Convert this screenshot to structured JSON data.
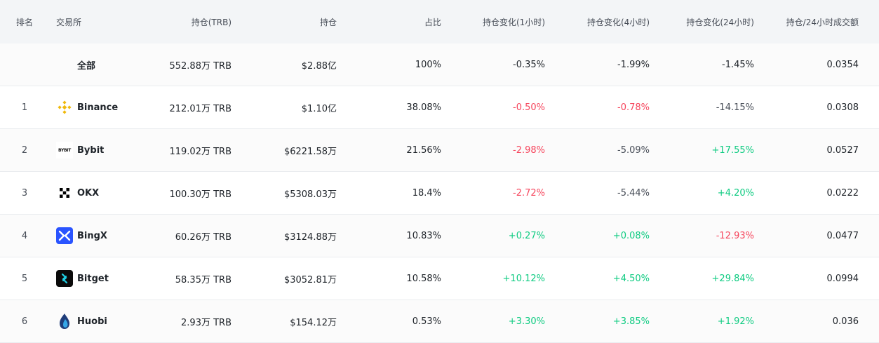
{
  "header": {
    "rank": "排名",
    "exchange": "交易所",
    "open_interest_trb": "持仓(TRB)",
    "open_interest": "持仓",
    "share": "占比",
    "change_1h": "持仓变化(1小时)",
    "change_4h": "持仓变化(4小时)",
    "change_24h": "持仓变化(24小时)",
    "oi_to_24h_volume": "持仓/24小时成交额"
  },
  "total": {
    "label": "全部",
    "oi_trb": "552.88万 TRB",
    "oi": "$2.88亿",
    "share": "100%",
    "h1": "-0.35%",
    "h4": "-1.99%",
    "h24": "-1.45%",
    "ratio": "0.0354"
  },
  "rows": [
    {
      "rank": "1",
      "name": "Binance",
      "icon": "binance-icon",
      "oi_trb": "212.01万 TRB",
      "oi": "$1.10亿",
      "share": "38.08%",
      "h1": "-0.50%",
      "h4": "-0.78%",
      "h24": "-14.15%",
      "ratio": "0.0308"
    },
    {
      "rank": "2",
      "name": "Bybit",
      "icon": "bybit-icon",
      "oi_trb": "119.02万 TRB",
      "oi": "$6221.58万",
      "share": "21.56%",
      "h1": "-2.98%",
      "h4": "-5.09%",
      "h24": "+17.55%",
      "ratio": "0.0527"
    },
    {
      "rank": "3",
      "name": "OKX",
      "icon": "okx-icon",
      "oi_trb": "100.30万 TRB",
      "oi": "$5308.03万",
      "share": "18.4%",
      "h1": "-2.72%",
      "h4": "-5.44%",
      "h24": "+4.20%",
      "ratio": "0.0222"
    },
    {
      "rank": "4",
      "name": "BingX",
      "icon": "bingx-icon",
      "oi_trb": "60.26万 TRB",
      "oi": "$3124.88万",
      "share": "10.83%",
      "h1": "+0.27%",
      "h4": "+0.08%",
      "h24": "-12.93%",
      "ratio": "0.0477"
    },
    {
      "rank": "5",
      "name": "Bitget",
      "icon": "bitget-icon",
      "oi_trb": "58.35万 TRB",
      "oi": "$3052.81万",
      "share": "10.58%",
      "h1": "+10.12%",
      "h4": "+4.50%",
      "h24": "+29.84%",
      "ratio": "0.0994"
    },
    {
      "rank": "6",
      "name": "Huobi",
      "icon": "huobi-icon",
      "oi_trb": "2.93万 TRB",
      "oi": "$154.12万",
      "share": "0.53%",
      "h1": "+3.30%",
      "h4": "+3.85%",
      "h24": "+1.92%",
      "ratio": "0.036"
    }
  ],
  "bybit_logo_text": "BYBIT",
  "colors": {
    "negative": "#f6465d",
    "positive": "#0ecb81",
    "highlight": "#31d1cc",
    "header_bg": "#f3f5f7",
    "binance": "#f0b90b",
    "bingx": "#2a54ff",
    "huobi": "#1f3d7a"
  }
}
